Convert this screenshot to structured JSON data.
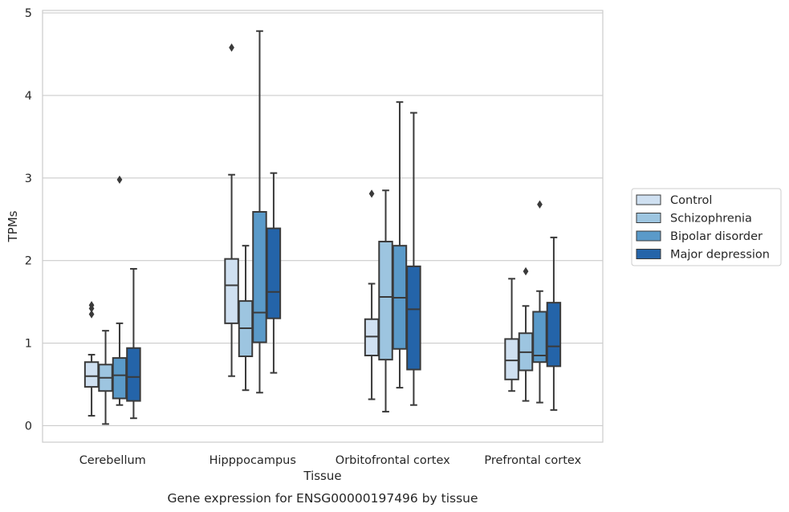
{
  "chart_data": {
    "type": "box",
    "caption": "Gene expression for ENSG00000197496 by tissue",
    "xlabel": "Tissue",
    "ylabel": "TPMs",
    "ylim": [
      -0.2,
      5.03
    ],
    "yticks": [
      0,
      1,
      2,
      3,
      4,
      5
    ],
    "grid": "horizontal",
    "legend_position": "right",
    "categories": [
      "Cerebellum",
      "Hipppocampus",
      "Orbitofrontal cortex",
      "Prefrontal cortex"
    ],
    "series": [
      {
        "name": "Control",
        "color": "#cfe0f1",
        "boxes": [
          {
            "whislo": 0.12,
            "q1": 0.47,
            "med": 0.6,
            "q3": 0.77,
            "whishi": 0.86,
            "fliers": [
              1.35,
              1.42,
              1.46
            ]
          },
          {
            "whislo": 0.6,
            "q1": 1.24,
            "med": 1.7,
            "q3": 2.02,
            "whishi": 3.04,
            "fliers": [
              4.58
            ]
          },
          {
            "whislo": 0.32,
            "q1": 0.85,
            "med": 1.08,
            "q3": 1.29,
            "whishi": 1.72,
            "fliers": [
              2.81
            ]
          },
          {
            "whislo": 0.42,
            "q1": 0.56,
            "med": 0.79,
            "q3": 1.05,
            "whishi": 1.78,
            "fliers": []
          }
        ]
      },
      {
        "name": "Schizophrenia",
        "color": "#9dc5e0",
        "boxes": [
          {
            "whislo": 0.02,
            "q1": 0.42,
            "med": 0.58,
            "q3": 0.74,
            "whishi": 1.15,
            "fliers": []
          },
          {
            "whislo": 0.43,
            "q1": 0.84,
            "med": 1.18,
            "q3": 1.51,
            "whishi": 2.18,
            "fliers": []
          },
          {
            "whislo": 0.17,
            "q1": 0.8,
            "med": 1.56,
            "q3": 2.23,
            "whishi": 2.85,
            "fliers": []
          },
          {
            "whislo": 0.3,
            "q1": 0.67,
            "med": 0.89,
            "q3": 1.12,
            "whishi": 1.45,
            "fliers": [
              1.87
            ]
          }
        ]
      },
      {
        "name": "Bipolar disorder",
        "color": "#5a9ac9",
        "boxes": [
          {
            "whislo": 0.25,
            "q1": 0.33,
            "med": 0.61,
            "q3": 0.82,
            "whishi": 1.24,
            "fliers": [
              2.98
            ]
          },
          {
            "whislo": 0.4,
            "q1": 1.01,
            "med": 1.37,
            "q3": 2.59,
            "whishi": 4.78,
            "fliers": []
          },
          {
            "whislo": 0.46,
            "q1": 0.93,
            "med": 1.55,
            "q3": 2.18,
            "whishi": 3.92,
            "fliers": []
          },
          {
            "whislo": 0.28,
            "q1": 0.77,
            "med": 0.85,
            "q3": 1.38,
            "whishi": 1.63,
            "fliers": [
              2.68
            ]
          }
        ]
      },
      {
        "name": "Major depression",
        "color": "#2464a9",
        "boxes": [
          {
            "whislo": 0.09,
            "q1": 0.3,
            "med": 0.59,
            "q3": 0.94,
            "whishi": 1.9,
            "fliers": []
          },
          {
            "whislo": 0.64,
            "q1": 1.3,
            "med": 1.62,
            "q3": 2.39,
            "whishi": 3.06,
            "fliers": []
          },
          {
            "whislo": 0.25,
            "q1": 0.68,
            "med": 1.41,
            "q3": 1.93,
            "whishi": 3.79,
            "fliers": []
          },
          {
            "whislo": 0.19,
            "q1": 0.72,
            "med": 0.96,
            "q3": 1.49,
            "whishi": 2.28,
            "fliers": []
          }
        ]
      }
    ]
  }
}
